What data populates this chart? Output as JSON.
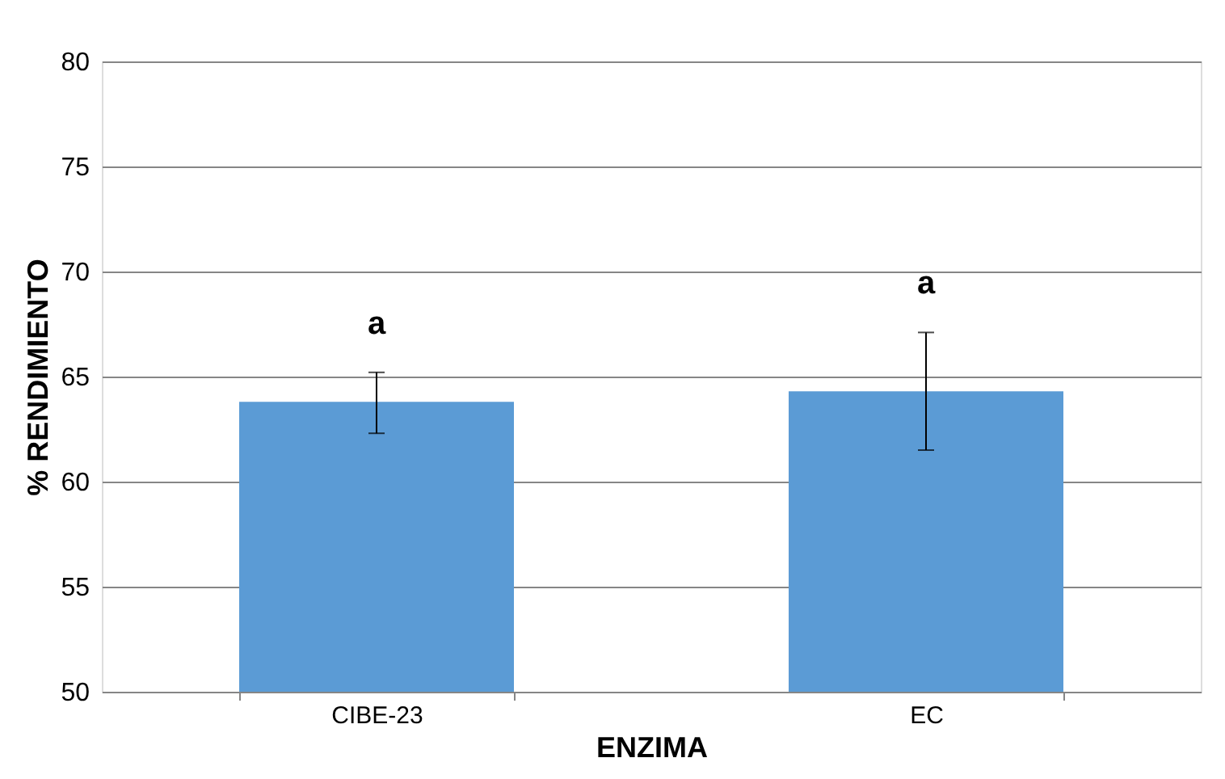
{
  "chart_data": {
    "type": "bar",
    "xlabel": "ENZIMA",
    "ylabel": "% RENDIMIENTO",
    "categories": [
      "CIBE-23",
      "EC"
    ],
    "values": [
      63.8,
      64.3
    ],
    "errors": [
      [
        62.3,
        65.2
      ],
      [
        61.5,
        67.1
      ]
    ],
    "color": "#5b9bd5",
    "ylim": [
      50,
      80
    ],
    "yticks": [
      50,
      55,
      60,
      65,
      70,
      75,
      80
    ],
    "grid": "y",
    "annotations": [
      "a",
      "a"
    ]
  }
}
